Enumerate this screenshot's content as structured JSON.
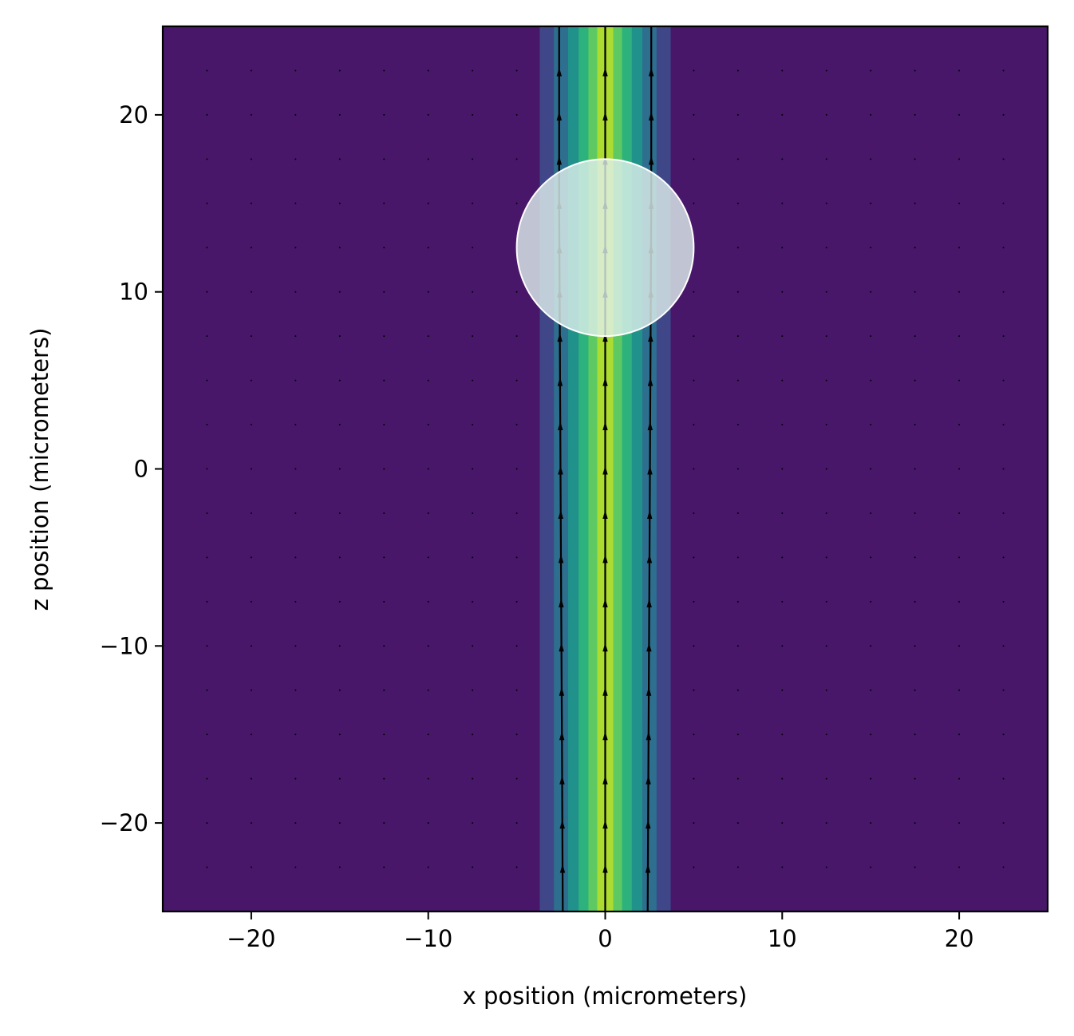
{
  "chart_data": {
    "type": "heatmap",
    "subtype": "filled-contour-with-streamlines",
    "title": "",
    "xlabel": "x position (micrometers)",
    "ylabel": "z position (micrometers)",
    "xlim": [
      -25,
      25
    ],
    "ylim": [
      -25,
      25
    ],
    "xticks": [
      -20,
      -10,
      0,
      10,
      20
    ],
    "yticks": [
      -20,
      -10,
      0,
      10,
      20
    ],
    "xtick_labels": [
      "−20",
      "−10",
      "0",
      "10",
      "20"
    ],
    "ytick_labels": [
      "−20",
      "−10",
      "0",
      "10",
      "20"
    ],
    "grid": false,
    "colormap": "viridis",
    "background_color": "#481769",
    "contour_bands": [
      {
        "x_min": -3.7,
        "x_max": 3.7,
        "color": "#3f4788"
      },
      {
        "x_min": -2.9,
        "x_max": 2.9,
        "color": "#2e6e8e"
      },
      {
        "x_min": -2.1,
        "x_max": 2.1,
        "color": "#21918c"
      },
      {
        "x_min": -1.5,
        "x_max": 1.5,
        "color": "#2db27d"
      },
      {
        "x_min": -0.95,
        "x_max": 0.95,
        "color": "#5ec962"
      },
      {
        "x_min": -0.45,
        "x_max": 0.45,
        "color": "#addc30"
      }
    ],
    "streamlines": [
      {
        "x": [
          -2.4,
          -2.45,
          -2.5,
          -2.55,
          -2.6,
          -2.6
        ],
        "z": [
          -25,
          -15,
          -5,
          5,
          15,
          25
        ]
      },
      {
        "x": [
          0,
          0,
          0,
          0,
          0,
          0
        ],
        "z": [
          -25,
          -15,
          -5,
          5,
          15,
          25
        ]
      },
      {
        "x": [
          2.4,
          2.45,
          2.5,
          2.55,
          2.6,
          2.6
        ],
        "z": [
          -25,
          -15,
          -5,
          5,
          15,
          25
        ]
      }
    ],
    "quiver_grid": {
      "x_start": -22.5,
      "z_start": -22.5,
      "step": 2.5,
      "count": 19
    },
    "sphere": {
      "center_x": 0,
      "center_z": 12.5,
      "radius": 5,
      "fill": "#e0f0ec",
      "opacity": 0.8
    }
  }
}
